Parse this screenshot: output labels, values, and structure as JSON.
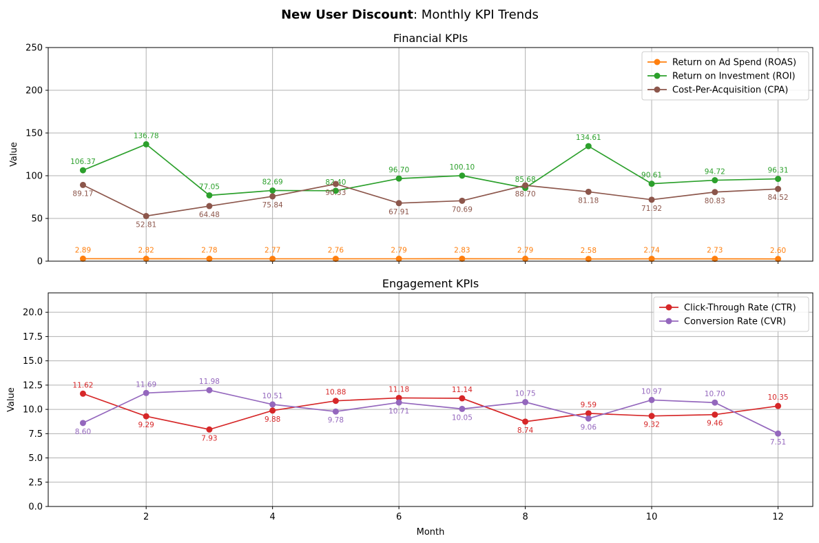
{
  "figure": {
    "title_bold": "New User Discount",
    "title_rest": ": Monthly KPI Trends"
  },
  "chart_data": [
    {
      "type": "line",
      "title": "Financial KPIs",
      "xlabel": "",
      "ylabel": "Value",
      "xlim": [
        0.45,
        12.55
      ],
      "ylim": [
        0,
        250
      ],
      "xticks": [
        2,
        4,
        6,
        8,
        10,
        12
      ],
      "yticks": [
        0,
        50,
        100,
        150,
        200,
        250
      ],
      "grid": true,
      "legend_position": "top-right",
      "x": [
        1,
        2,
        3,
        4,
        5,
        6,
        7,
        8,
        9,
        10,
        11,
        12
      ],
      "series": [
        {
          "name": "Return on Ad Spend (ROAS)",
          "color": "#ff7f0e",
          "label_pos": "above",
          "values": [
            2.89,
            2.82,
            2.78,
            2.77,
            2.76,
            2.79,
            2.83,
            2.79,
            2.58,
            2.74,
            2.73,
            2.6
          ]
        },
        {
          "name": "Return on Investment (ROI)",
          "color": "#2ca02c",
          "label_pos": "above",
          "values": [
            106.37,
            136.78,
            77.05,
            82.69,
            82.4,
            96.7,
            100.1,
            85.68,
            134.61,
            90.61,
            94.72,
            96.31
          ]
        },
        {
          "name": "Cost-Per-Acquisition (CPA)",
          "color": "#8c564b",
          "label_pos": "below",
          "values": [
            89.17,
            52.81,
            64.48,
            75.84,
            90.33,
            67.91,
            70.69,
            88.7,
            81.18,
            71.92,
            80.83,
            84.52
          ]
        }
      ]
    },
    {
      "type": "line",
      "title": "Engagement KPIs",
      "xlabel": "Month",
      "ylabel": "Value",
      "xlim": [
        0.45,
        12.55
      ],
      "ylim": [
        0,
        22
      ],
      "xticks": [
        2,
        4,
        6,
        8,
        10,
        12
      ],
      "yticks": [
        0.0,
        2.5,
        5.0,
        7.5,
        10.0,
        12.5,
        15.0,
        17.5,
        20.0
      ],
      "grid": true,
      "legend_position": "top-right",
      "x": [
        1,
        2,
        3,
        4,
        5,
        6,
        7,
        8,
        9,
        10,
        11,
        12
      ],
      "series": [
        {
          "name": "Click-Through Rate (CTR)",
          "color": "#d62728",
          "label_pos": "auto",
          "values": [
            11.62,
            9.29,
            7.93,
            9.88,
            10.88,
            11.18,
            11.14,
            8.74,
            9.59,
            9.32,
            9.46,
            10.35
          ]
        },
        {
          "name": "Conversion Rate (CVR)",
          "color": "#9467bd",
          "label_pos": "auto",
          "values": [
            8.6,
            11.69,
            11.98,
            10.51,
            9.78,
            10.71,
            10.05,
            10.75,
            9.06,
            10.97,
            10.7,
            7.51
          ]
        }
      ]
    }
  ]
}
